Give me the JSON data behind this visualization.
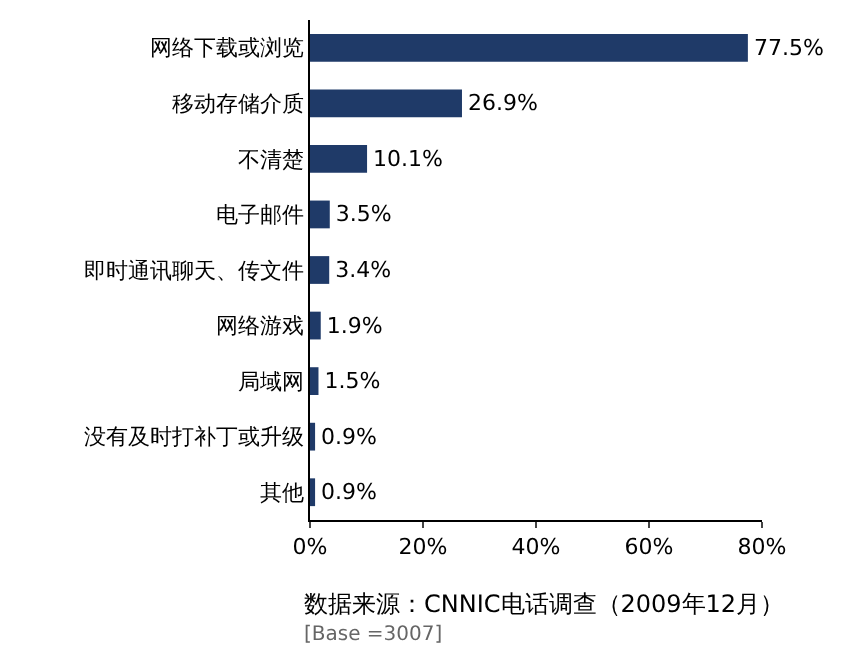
{
  "chart_data": {
    "type": "bar",
    "orientation": "horizontal",
    "categories": [
      "网络下载或浏览",
      "移动存储介质",
      "不清楚",
      "电子邮件",
      "即时通讯聊天、传文件",
      "网络游戏",
      "局域网",
      "没有及时打补丁或升级",
      "其他"
    ],
    "values": [
      77.5,
      26.9,
      10.1,
      3.5,
      3.4,
      1.9,
      1.5,
      0.9,
      0.9
    ],
    "value_labels": [
      "77.5%",
      "26.9%",
      "10.1%",
      "3.5%",
      "3.4%",
      "1.9%",
      "1.5%",
      "0.9%",
      "0.9%"
    ],
    "color": "#1f3a68",
    "xlim": [
      0,
      80
    ],
    "xticks": [
      {
        "value": 0,
        "label": "0%"
      },
      {
        "value": 20,
        "label": "20%"
      },
      {
        "value": 40,
        "label": "40%"
      },
      {
        "value": 60,
        "label": "60%"
      },
      {
        "value": 80,
        "label": "80%"
      }
    ],
    "annotations": [
      "数据来源：CNNIC电话调查（2009年12月）",
      "[Base =3007]"
    ]
  }
}
